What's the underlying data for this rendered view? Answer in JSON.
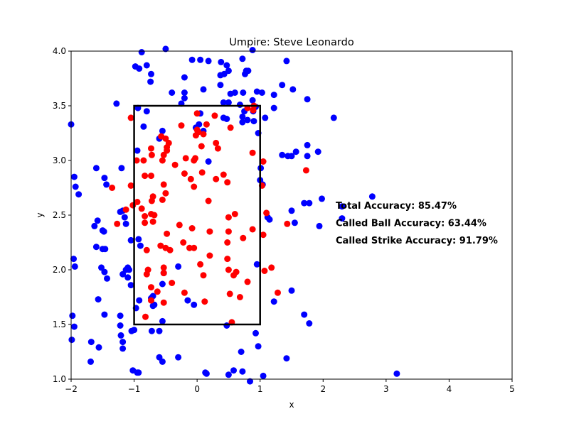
{
  "chart_data": {
    "type": "scatter",
    "title": "Umpire: Steve Leonardo",
    "xlabel": "x",
    "ylabel": "y",
    "xlim": [
      -2,
      5
    ],
    "ylim": [
      1,
      4
    ],
    "xticks": [
      "−2",
      "−1",
      "0",
      "1",
      "2",
      "3",
      "4",
      "5"
    ],
    "yticks": [
      "1.0",
      "1.5",
      "2.0",
      "2.5",
      "3.0",
      "3.5",
      "4.0"
    ],
    "grid": false,
    "strike_zone": {
      "x": [
        -1,
        1
      ],
      "y": [
        1.5,
        3.5
      ]
    },
    "annotations": [
      {
        "text": "Total Accuracy: 85.47%",
        "x": 2.2,
        "y": 2.56
      },
      {
        "text": "Called Ball Accuracy: 63.44%",
        "x": 2.2,
        "y": 2.4
      },
      {
        "text": "Called Strike Accuracy: 91.79%",
        "x": 2.2,
        "y": 2.24
      }
    ],
    "series": [
      {
        "color": "#0000ff",
        "points": [
          [
            -2.0,
            3.33
          ],
          [
            -1.95,
            2.85
          ],
          [
            -1.93,
            2.76
          ],
          [
            -1.88,
            2.69
          ],
          [
            -1.96,
            2.1
          ],
          [
            -1.94,
            2.03
          ],
          [
            -1.98,
            1.58
          ],
          [
            -1.95,
            1.48
          ],
          [
            -1.99,
            1.36
          ],
          [
            -1.6,
            2.93
          ],
          [
            -1.63,
            2.4
          ],
          [
            -1.58,
            2.45
          ],
          [
            -1.5,
            2.36
          ],
          [
            -1.48,
            2.35
          ],
          [
            -1.6,
            2.21
          ],
          [
            -1.5,
            2.19
          ],
          [
            -1.46,
            2.19
          ],
          [
            -1.52,
            2.02
          ],
          [
            -1.47,
            1.98
          ],
          [
            -1.43,
            1.92
          ],
          [
            -1.57,
            1.73
          ],
          [
            -1.47,
            1.59
          ],
          [
            -1.68,
            1.34
          ],
          [
            -1.56,
            1.29
          ],
          [
            -1.69,
            1.16
          ],
          [
            -1.47,
            2.84
          ],
          [
            -1.44,
            2.78
          ],
          [
            -1.28,
            3.52
          ],
          [
            -1.2,
            2.93
          ],
          [
            -1.22,
            2.53
          ],
          [
            -1.18,
            2.54
          ],
          [
            -1.15,
            2.48
          ],
          [
            -1.13,
            2.42
          ],
          [
            -1.13,
            2.0
          ],
          [
            -1.18,
            1.96
          ],
          [
            -1.1,
            1.93
          ],
          [
            -1.22,
            1.58
          ],
          [
            -1.22,
            1.49
          ],
          [
            -1.21,
            1.4
          ],
          [
            -1.18,
            1.34
          ],
          [
            -1.18,
            1.28
          ],
          [
            -1.05,
            2.27
          ],
          [
            -1.08,
            2.0
          ],
          [
            -1.05,
            1.86
          ],
          [
            -1.1,
            2.02
          ],
          [
            -1.0,
            1.45
          ],
          [
            -1.04,
            1.44
          ],
          [
            -1.02,
            1.08
          ],
          [
            -0.95,
            1.06
          ],
          [
            -0.93,
            1.06
          ],
          [
            -0.88,
            3.99
          ],
          [
            -0.98,
            3.86
          ],
          [
            -0.92,
            3.84
          ],
          [
            -0.8,
            3.87
          ],
          [
            -0.73,
            3.79
          ],
          [
            -0.74,
            3.72
          ],
          [
            -0.94,
            3.48
          ],
          [
            -0.8,
            3.45
          ],
          [
            -0.85,
            3.31
          ],
          [
            -0.95,
            3.09
          ],
          [
            -0.93,
            2.28
          ],
          [
            -0.9,
            2.22
          ],
          [
            -0.92,
            1.72
          ],
          [
            -0.97,
            1.65
          ],
          [
            -0.7,
            1.76
          ],
          [
            -0.73,
            1.74
          ],
          [
            -0.7,
            1.67
          ],
          [
            -0.68,
            1.68
          ],
          [
            -0.72,
            1.44
          ],
          [
            -0.6,
            1.44
          ],
          [
            -0.55,
            1.53
          ],
          [
            -0.6,
            1.2
          ],
          [
            -0.55,
            1.16
          ],
          [
            -0.55,
            1.87
          ],
          [
            -0.53,
            1.97
          ],
          [
            -0.55,
            3.27
          ],
          [
            -0.6,
            3.2
          ],
          [
            -0.5,
            4.02
          ],
          [
            -0.4,
            3.62
          ],
          [
            -0.25,
            3.52
          ],
          [
            -0.2,
            3.76
          ],
          [
            -0.2,
            3.62
          ],
          [
            -0.2,
            3.57
          ],
          [
            -0.08,
            3.92
          ],
          [
            0.05,
            3.92
          ],
          [
            0.18,
            3.91
          ],
          [
            0.03,
            3.33
          ],
          [
            0.1,
            3.27
          ],
          [
            -0.02,
            3.3
          ],
          [
            0.05,
            3.43
          ],
          [
            0.1,
            3.65
          ],
          [
            0.18,
            2.99
          ],
          [
            -0.3,
            2.03
          ],
          [
            -0.15,
            1.72
          ],
          [
            -0.05,
            1.68
          ],
          [
            -0.3,
            1.2
          ],
          [
            0.13,
            1.06
          ],
          [
            0.15,
            1.05
          ],
          [
            0.38,
            3.9
          ],
          [
            0.37,
            3.78
          ],
          [
            0.43,
            3.79
          ],
          [
            0.47,
            3.87
          ],
          [
            0.5,
            3.82
          ],
          [
            0.37,
            3.69
          ],
          [
            0.53,
            3.61
          ],
          [
            0.6,
            3.62
          ],
          [
            0.73,
            3.62
          ],
          [
            0.78,
            3.82
          ],
          [
            0.81,
            3.82
          ],
          [
            0.76,
            3.79
          ],
          [
            0.72,
            3.93
          ],
          [
            0.88,
            4.01
          ],
          [
            0.95,
            3.63
          ],
          [
            1.03,
            3.62
          ],
          [
            0.42,
            3.53
          ],
          [
            0.5,
            3.53
          ],
          [
            0.42,
            3.39
          ],
          [
            0.47,
            3.38
          ],
          [
            0.68,
            3.51
          ],
          [
            0.72,
            3.4
          ],
          [
            0.72,
            3.35
          ],
          [
            0.75,
            3.45
          ],
          [
            0.8,
            3.37
          ],
          [
            0.88,
            3.55
          ],
          [
            0.89,
            3.45
          ],
          [
            0.9,
            3.36
          ],
          [
            0.93,
            3.49
          ],
          [
            0.97,
            3.25
          ],
          [
            1.01,
            2.93
          ],
          [
            1.0,
            2.82
          ],
          [
            1.04,
            2.78
          ],
          [
            1.15,
            2.46
          ],
          [
            1.12,
            2.48
          ],
          [
            1.08,
            3.39
          ],
          [
            1.22,
            3.48
          ],
          [
            1.22,
            3.6
          ],
          [
            1.35,
            3.69
          ],
          [
            1.42,
            3.91
          ],
          [
            1.52,
            3.65
          ],
          [
            1.75,
            3.56
          ],
          [
            1.35,
            3.05
          ],
          [
            1.44,
            3.04
          ],
          [
            1.5,
            3.04
          ],
          [
            1.57,
            3.08
          ],
          [
            1.75,
            3.14
          ],
          [
            1.75,
            3.04
          ],
          [
            1.92,
            3.08
          ],
          [
            1.7,
            2.61
          ],
          [
            1.78,
            2.61
          ],
          [
            1.98,
            2.65
          ],
          [
            2.17,
            3.39
          ],
          [
            1.5,
            2.54
          ],
          [
            1.55,
            2.43
          ],
          [
            1.94,
            2.4
          ],
          [
            2.3,
            2.58
          ],
          [
            2.3,
            2.47
          ],
          [
            2.78,
            2.67
          ],
          [
            0.47,
            1.49
          ],
          [
            0.5,
            1.04
          ],
          [
            0.58,
            1.08
          ],
          [
            0.72,
            1.07
          ],
          [
            0.7,
            1.25
          ],
          [
            0.93,
            1.42
          ],
          [
            0.97,
            1.3
          ],
          [
            1.05,
            1.03
          ],
          [
            0.84,
            0.98
          ],
          [
            1.22,
            1.71
          ],
          [
            1.42,
            1.19
          ],
          [
            1.5,
            1.81
          ],
          [
            1.7,
            1.59
          ],
          [
            1.78,
            1.51
          ],
          [
            0.95,
            2.05
          ],
          [
            3.17,
            1.05
          ]
        ]
      },
      {
        "color": "#ff0000",
        "points": [
          [
            -1.35,
            2.75
          ],
          [
            -1.27,
            2.42
          ],
          [
            -1.13,
            2.55
          ],
          [
            -1.05,
            3.39
          ],
          [
            -1.05,
            2.77
          ],
          [
            -1.02,
            2.59
          ],
          [
            -0.96,
            3.0
          ],
          [
            -0.95,
            2.62
          ],
          [
            -0.88,
            2.56
          ],
          [
            -0.83,
            2.49
          ],
          [
            -0.83,
            2.43
          ],
          [
            -0.83,
            2.86
          ],
          [
            -0.85,
            3.0
          ],
          [
            -0.73,
            3.11
          ],
          [
            -0.72,
            3.05
          ],
          [
            -0.73,
            2.86
          ],
          [
            -0.72,
            2.63
          ],
          [
            -0.7,
            2.67
          ],
          [
            -0.73,
            2.51
          ],
          [
            -0.68,
            2.5
          ],
          [
            -0.7,
            2.44
          ],
          [
            -0.8,
            2.18
          ],
          [
            -0.78,
            2.0
          ],
          [
            -0.8,
            1.96
          ],
          [
            -0.73,
            1.72
          ],
          [
            -0.73,
            1.84
          ],
          [
            -0.82,
            1.57
          ],
          [
            -0.63,
            1.8
          ],
          [
            -0.53,
            1.7
          ],
          [
            -0.58,
            2.22
          ],
          [
            -0.53,
            2.02
          ],
          [
            -0.53,
            1.97
          ],
          [
            -0.5,
            2.2
          ],
          [
            -0.43,
            2.18
          ],
          [
            -0.48,
            2.33
          ],
          [
            -0.55,
            2.64
          ],
          [
            -0.5,
            2.7
          ],
          [
            -0.53,
            2.78
          ],
          [
            -0.55,
            3.0
          ],
          [
            -0.53,
            3.05
          ],
          [
            -0.57,
            3.22
          ],
          [
            -0.5,
            3.2
          ],
          [
            -0.45,
            3.16
          ],
          [
            -0.48,
            3.12
          ],
          [
            -0.48,
            3.09
          ],
          [
            -0.35,
            2.96
          ],
          [
            -0.4,
            1.88
          ],
          [
            -0.28,
            2.41
          ],
          [
            -0.22,
            2.25
          ],
          [
            -0.2,
            1.79
          ],
          [
            -0.25,
            3.32
          ],
          [
            -0.18,
            3.02
          ],
          [
            -0.2,
            2.88
          ],
          [
            -0.1,
            2.83
          ],
          [
            -0.05,
            2.76
          ],
          [
            -0.05,
            3.0
          ],
          [
            -0.03,
            3.02
          ],
          [
            -0.02,
            3.23
          ],
          [
            0.0,
            3.28
          ],
          [
            0.02,
            3.26
          ],
          [
            0.0,
            3.43
          ],
          [
            0.1,
            3.24
          ],
          [
            0.07,
            3.13
          ],
          [
            0.08,
            2.89
          ],
          [
            0.15,
            3.33
          ],
          [
            0.18,
            2.63
          ],
          [
            -0.08,
            2.38
          ],
          [
            -0.05,
            2.2
          ],
          [
            0.05,
            2.05
          ],
          [
            0.1,
            1.95
          ],
          [
            0.2,
            2.35
          ],
          [
            0.2,
            2.13
          ],
          [
            0.12,
            1.71
          ],
          [
            -0.12,
            2.2
          ],
          [
            0.28,
            3.41
          ],
          [
            0.3,
            3.16
          ],
          [
            0.33,
            3.11
          ],
          [
            0.3,
            2.83
          ],
          [
            0.42,
            2.87
          ],
          [
            0.48,
            2.8
          ],
          [
            0.5,
            2.48
          ],
          [
            0.48,
            2.25
          ],
          [
            0.5,
            2.35
          ],
          [
            0.48,
            2.1
          ],
          [
            0.5,
            2.0
          ],
          [
            0.52,
            1.78
          ],
          [
            0.53,
            3.3
          ],
          [
            0.55,
            1.52
          ],
          [
            0.58,
            1.95
          ],
          [
            0.62,
            1.98
          ],
          [
            0.6,
            2.51
          ],
          [
            0.73,
            2.29
          ],
          [
            0.8,
            1.89
          ],
          [
            0.68,
            1.75
          ],
          [
            0.8,
            3.48
          ],
          [
            0.88,
            3.07
          ],
          [
            0.89,
            3.46
          ],
          [
            0.9,
            3.5
          ],
          [
            0.88,
            2.37
          ],
          [
            1.03,
            2.77
          ],
          [
            1.05,
            2.99
          ],
          [
            1.05,
            2.32
          ],
          [
            1.1,
            2.52
          ],
          [
            1.07,
            1.99
          ],
          [
            1.18,
            2.02
          ],
          [
            1.28,
            1.79
          ],
          [
            1.43,
            2.42
          ],
          [
            1.73,
            2.91
          ]
        ]
      }
    ]
  }
}
